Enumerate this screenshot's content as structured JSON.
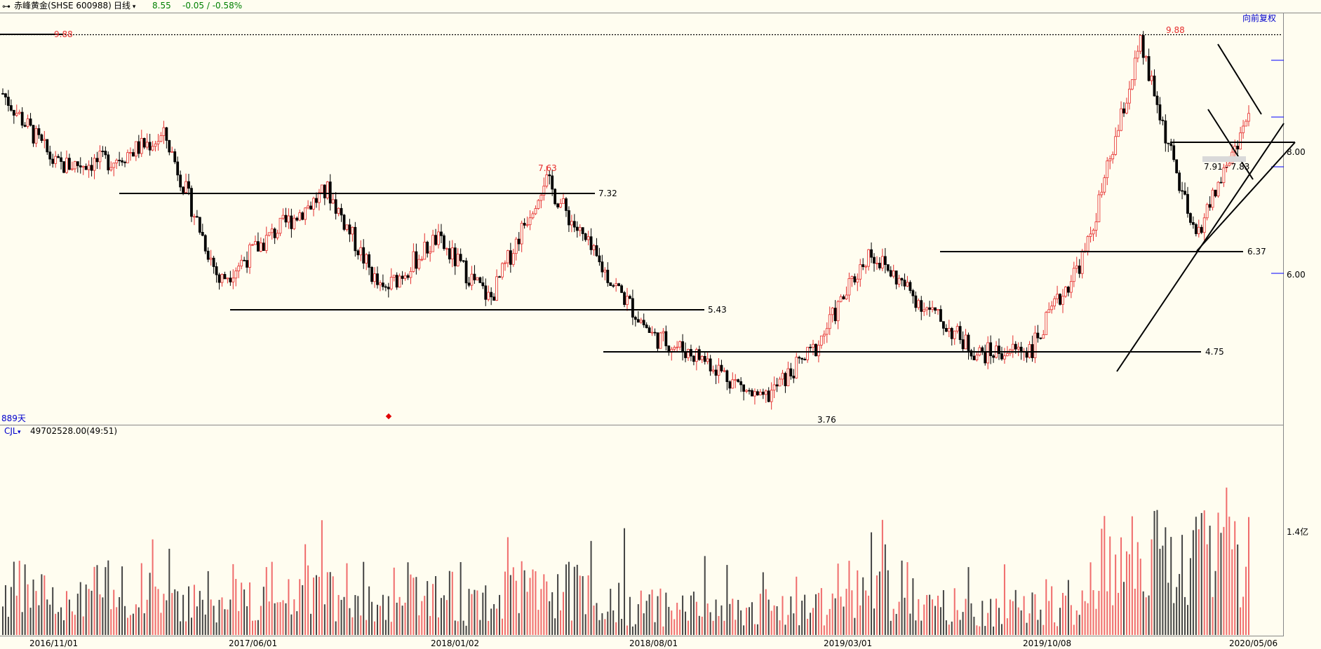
{
  "header": {
    "link_icon": "link-icon",
    "stock_name": "赤峰黄金(SHSE 600988)",
    "period": "日线",
    "price": "8.55",
    "change": "-0.05 / -0.58%",
    "colors": {
      "down": "#008000",
      "up": "#e62e2e",
      "text": "#000000"
    }
  },
  "price_panel": {
    "adjust_label": "向前复权",
    "days_label": "889天",
    "y_labels": [
      "8.00",
      "6.00"
    ],
    "high_labels": [
      "9.88",
      "7.63",
      "9.88"
    ],
    "low_label": "3.76",
    "levels": [
      "7.32",
      "5.43",
      "4.75",
      "6.37"
    ],
    "range_label": "7.91 - 7.83"
  },
  "volume_panel": {
    "indicator_label": "CJL",
    "indicator_value": "49702528.00(49:51)",
    "y_label": "1.4亿"
  },
  "x_labels": [
    "2016/11/01",
    "2017/06/01",
    "2018/01/02",
    "2018/08/01",
    "2019/03/01",
    "2019/10/08",
    "2020/05/06"
  ],
  "chart_data": {
    "type": "candlestick",
    "series": [
      {
        "x": "2016/11/01",
        "close": 8.9
      },
      {
        "x": "2017/01",
        "close": 7.7
      },
      {
        "x": "2017/03",
        "close": 7.8
      },
      {
        "x": "2017/04",
        "close": 8.2
      },
      {
        "x": "2017/06/01",
        "close": 5.8
      },
      {
        "x": "2017/08",
        "close": 6.6
      },
      {
        "x": "2017/10",
        "close": 7.3
      },
      {
        "x": "2017/12",
        "close": 5.6
      },
      {
        "x": "2018/01/02",
        "close": 6.5
      },
      {
        "x": "2018/03",
        "close": 5.5
      },
      {
        "x": "2018/05",
        "close": 7.5
      },
      {
        "x": "2018/07",
        "close": 6.1
      },
      {
        "x": "2018/08/01",
        "close": 4.9
      },
      {
        "x": "2018/10",
        "close": 4.5
      },
      {
        "x": "2019/01",
        "close": 3.8
      },
      {
        "x": "2019/03/01",
        "close": 4.7
      },
      {
        "x": "2019/06",
        "close": 6.3
      },
      {
        "x": "2019/08",
        "close": 5.4
      },
      {
        "x": "2019/10/08",
        "close": 4.6
      },
      {
        "x": "2019/12",
        "close": 4.7
      },
      {
        "x": "2020/02",
        "close": 6.3
      },
      {
        "x": "2020/03",
        "close": 9.7
      },
      {
        "x": "2020/04",
        "close": 6.5
      },
      {
        "x": "2020/05/06",
        "close": 8.55
      }
    ],
    "volume_axis_label": "1.4亿"
  }
}
